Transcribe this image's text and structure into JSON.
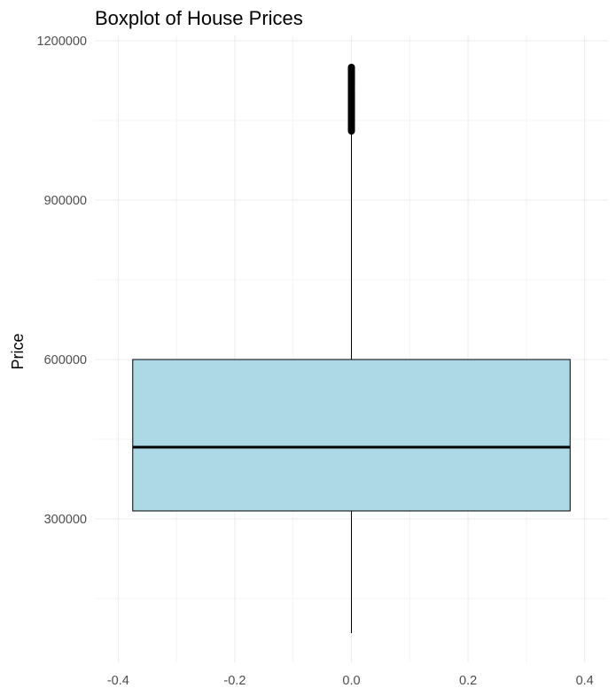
{
  "chart_data": {
    "type": "boxplot",
    "title": "Boxplot of House Prices",
    "xlabel": "",
    "ylabel": "Price",
    "x_ticks": [
      -0.4,
      -0.2,
      0.0,
      0.2,
      0.4
    ],
    "x_tick_labels": [
      "-0.4",
      "-0.2",
      "0.0",
      "0.2",
      "0.4"
    ],
    "y_ticks": [
      300000,
      600000,
      900000,
      1200000
    ],
    "y_tick_labels": [
      "300000",
      "600000",
      "900000",
      "1200000"
    ],
    "xlim": [
      -0.44,
      0.44
    ],
    "ylim": [
      30000,
      1210000
    ],
    "box": {
      "x_left": -0.375,
      "x_right": 0.375,
      "q1": 315000,
      "median": 435000,
      "q3": 600000,
      "whisker_low": 85000,
      "whisker_high": 1025000,
      "outliers_min": 1030000,
      "outliers_max": 1150000
    },
    "grid": true,
    "legend": "none",
    "colors": {
      "box_fill": "#add8e6",
      "stroke": "#000000",
      "grid_major": "#ebebeb",
      "grid_minor": "#f4f4f4",
      "tick_text": "#4d4d4d"
    }
  }
}
